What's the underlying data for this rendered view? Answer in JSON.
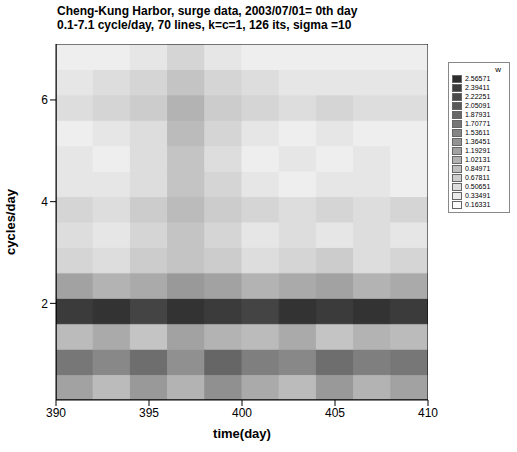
{
  "chart_data": {
    "type": "heatmap",
    "title": "Cheng-Kung Harbor, surge data, 2003/07/01= 0th day",
    "subtitle": "0.1-7.1 cycle/day, 70 lines, k=c=1, 126 its, sigma =10",
    "x_label": "time(day)",
    "y_label": "cycles/day",
    "xlim": [
      390,
      410
    ],
    "xticks": [
      390,
      395,
      400,
      405,
      410
    ],
    "ylim": [
      0.1,
      7.1
    ],
    "yticks": [
      2,
      4,
      6
    ],
    "x_edges": [
      390,
      392,
      394,
      396,
      398,
      400,
      402,
      404,
      406,
      408,
      410
    ],
    "y_edges": [
      0.1,
      0.6,
      1.1,
      1.6,
      2.1,
      2.6,
      3.1,
      3.6,
      4.1,
      4.6,
      5.1,
      5.6,
      6.1,
      6.6,
      7.1
    ],
    "cells": [
      [
        1.2,
        0.9,
        1.3,
        1.0,
        1.4,
        1.1,
        0.9,
        1.3,
        1.0,
        1.2
      ],
      [
        1.7,
        1.5,
        1.8,
        1.4,
        1.9,
        1.6,
        1.5,
        1.8,
        1.6,
        1.7
      ],
      [
        0.9,
        1.1,
        0.8,
        1.2,
        1.0,
        0.9,
        1.1,
        0.8,
        1.0,
        0.9
      ],
      [
        2.4,
        2.5,
        2.3,
        2.5,
        2.4,
        2.3,
        2.5,
        2.4,
        2.5,
        2.4
      ],
      [
        1.2,
        1.0,
        1.1,
        1.3,
        1.2,
        1.0,
        1.1,
        1.2,
        1.0,
        1.1
      ],
      [
        0.6,
        0.5,
        0.7,
        0.8,
        0.7,
        0.5,
        0.6,
        0.7,
        0.5,
        0.6
      ],
      [
        0.5,
        0.4,
        0.6,
        0.8,
        0.6,
        0.4,
        0.5,
        0.4,
        0.5,
        0.4
      ],
      [
        0.6,
        0.5,
        0.7,
        0.9,
        0.7,
        0.6,
        0.5,
        0.6,
        0.5,
        0.6
      ],
      [
        0.4,
        0.4,
        0.5,
        0.8,
        0.6,
        0.4,
        0.3,
        0.4,
        0.4,
        0.3
      ],
      [
        0.4,
        0.3,
        0.5,
        0.8,
        0.5,
        0.3,
        0.4,
        0.3,
        0.4,
        0.3
      ],
      [
        0.3,
        0.4,
        0.5,
        0.9,
        0.6,
        0.4,
        0.3,
        0.4,
        0.3,
        0.3
      ],
      [
        0.5,
        0.6,
        0.7,
        1.0,
        0.7,
        0.6,
        0.5,
        0.6,
        0.5,
        0.5
      ],
      [
        0.4,
        0.5,
        0.6,
        0.8,
        0.6,
        0.5,
        0.4,
        0.4,
        0.4,
        0.4
      ],
      [
        0.3,
        0.3,
        0.4,
        0.6,
        0.4,
        0.3,
        0.3,
        0.3,
        0.3,
        0.3
      ]
    ],
    "colorbar": {
      "title": "w",
      "range": [
        0.16331,
        2.56571
      ],
      "ticks": [
        0.16331,
        0.33491,
        0.50651,
        0.67811,
        0.84971,
        1.02131,
        1.19291,
        1.36451,
        1.53611,
        1.70771,
        1.87931,
        2.05091,
        2.22251,
        2.39411,
        2.56571
      ]
    }
  }
}
